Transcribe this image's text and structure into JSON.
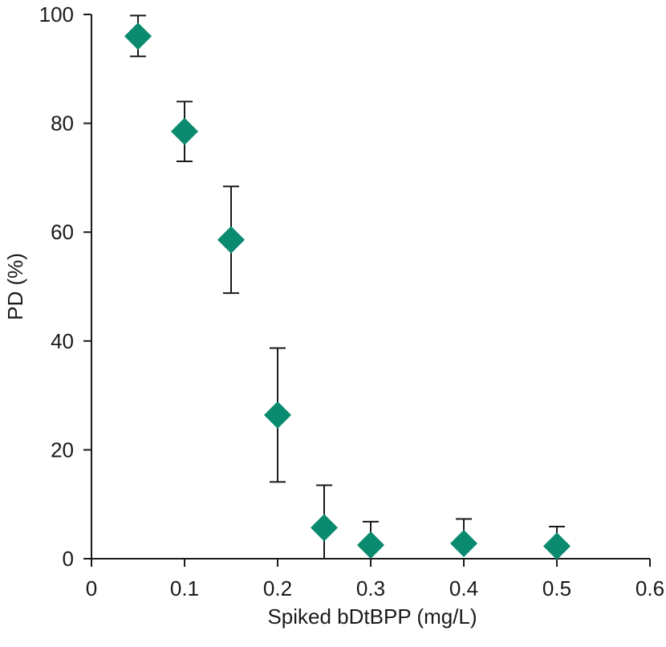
{
  "chart_data": {
    "type": "scatter",
    "xlabel": "Spiked bDtBPP (mg/L)",
    "ylabel": "PD (%)",
    "xlim": [
      0,
      0.6
    ],
    "ylim": [
      0,
      100
    ],
    "x_ticks": [
      "0",
      "0.1",
      "0.2",
      "0.3",
      "0.4",
      "0.5",
      "0.6"
    ],
    "y_ticks": [
      "0",
      "20",
      "40",
      "60",
      "80",
      "100"
    ],
    "marker": "diamond",
    "marker_color": "#0a8a6e",
    "grid": false,
    "series": [
      {
        "points": [
          {
            "x": 0.05,
            "y": 96.0,
            "err_low": 92.3,
            "err_high": 99.8
          },
          {
            "x": 0.1,
            "y": 78.5,
            "err_low": 73.0,
            "err_high": 84.0
          },
          {
            "x": 0.15,
            "y": 58.6,
            "err_low": 48.8,
            "err_high": 68.4
          },
          {
            "x": 0.2,
            "y": 26.4,
            "err_low": 14.1,
            "err_high": 38.7
          },
          {
            "x": 0.25,
            "y": 5.7,
            "err_low": 0.0,
            "err_high": 13.5
          },
          {
            "x": 0.3,
            "y": 2.5,
            "err_low": 2.5,
            "err_high": 6.8
          },
          {
            "x": 0.4,
            "y": 2.8,
            "err_low": 2.8,
            "err_high": 7.3
          },
          {
            "x": 0.5,
            "y": 2.3,
            "err_low": 2.3,
            "err_high": 5.9
          }
        ]
      }
    ]
  }
}
